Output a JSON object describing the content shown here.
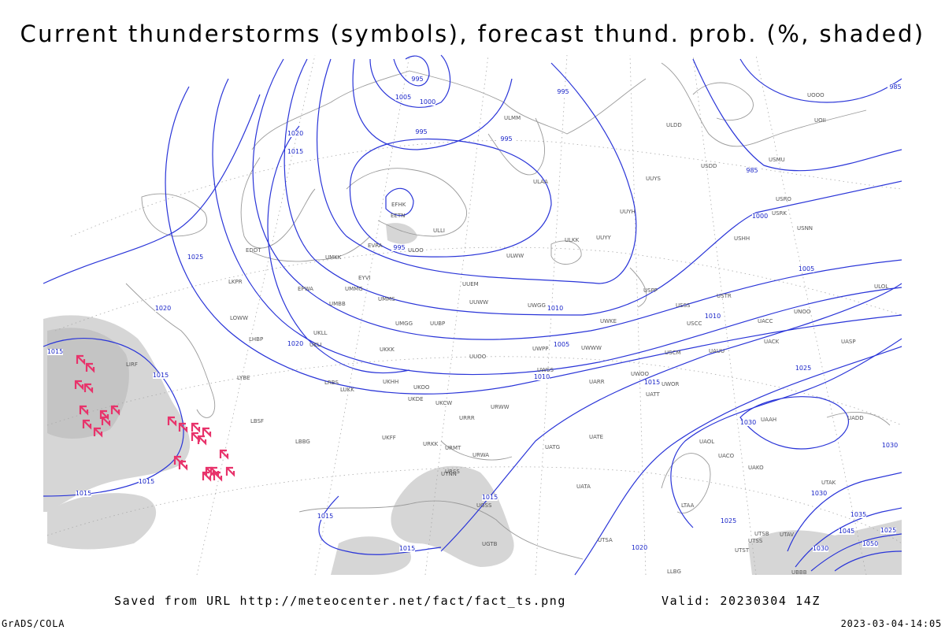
{
  "header": {
    "title": "Current thunderstorms (symbols), forecast thund. prob. (%, shaded)"
  },
  "footer": {
    "source": "Saved from URL  http://meteocenter.net/fact/fact_ts.png",
    "valid": "Valid: 20230304 14Z",
    "credit": "GrADS/COLA",
    "timestamp": "2023-03-04-14:05"
  },
  "isobar_labels": [
    "995",
    "1005",
    "1000",
    "995",
    "995",
    "995",
    "1020",
    "1015",
    "1025",
    "995",
    "1020",
    "1020",
    "1015",
    "1015",
    "1010",
    "1005",
    "1010",
    "1015",
    "1005",
    "1000",
    "985",
    "985",
    "1010",
    "1025",
    "1030",
    "1015",
    "1015",
    "1015",
    "1015",
    "1015",
    "1020",
    "1025",
    "1030",
    "1030",
    "1035",
    "1045",
    "1050",
    "1030",
    "1025"
  ],
  "stations": [
    "EFHK",
    "EETN",
    "ULLI",
    "ULOO",
    "EVRA",
    "UMKK",
    "EDDT",
    "EYVI",
    "ULWW",
    "ULKK",
    "UUYY",
    "UUYH",
    "UUYS",
    "ULAA",
    "ULMM",
    "UUEM",
    "UMMS",
    "UMMG",
    "EPWA",
    "UMBB",
    "UMGG",
    "UUBP",
    "UUWW",
    "UWGG",
    "UWKE",
    "UWWW",
    "UWPP",
    "UUOO",
    "UKKK",
    "UKHH",
    "UKDE",
    "UKOO",
    "UKCW",
    "URRR",
    "URWW",
    "UWSS",
    "UATT",
    "UARR",
    "UWOO",
    "UWOR",
    "USSS",
    "USCC",
    "USCM",
    "UAUU",
    "USTR",
    "UACC",
    "UNOO",
    "UACK",
    "UASP",
    "USNN",
    "USRK",
    "USRO",
    "USMU",
    "USDD",
    "ULDD",
    "UOOO",
    "UOII",
    "USHH",
    "USPP",
    "ULOL",
    "LKPR",
    "LOWW",
    "LHBP",
    "LYBE",
    "LBSF",
    "LRBS",
    "LIRF",
    "UKLL",
    "UKLI",
    "LUKK",
    "LBBG",
    "UKFF",
    "URKK",
    "URMT",
    "URWA",
    "UATG",
    "UATE",
    "UATA",
    "UAOL",
    "UACO",
    "UAKO",
    "UAAH",
    "UADD",
    "UTAK",
    "UTSA",
    "UTSB",
    "UTSS",
    "UTAV",
    "UTST",
    "UBBB",
    "UGTB",
    "UGSS",
    "URSS",
    "UTNN",
    "LTAA",
    "LLBG"
  ]
}
